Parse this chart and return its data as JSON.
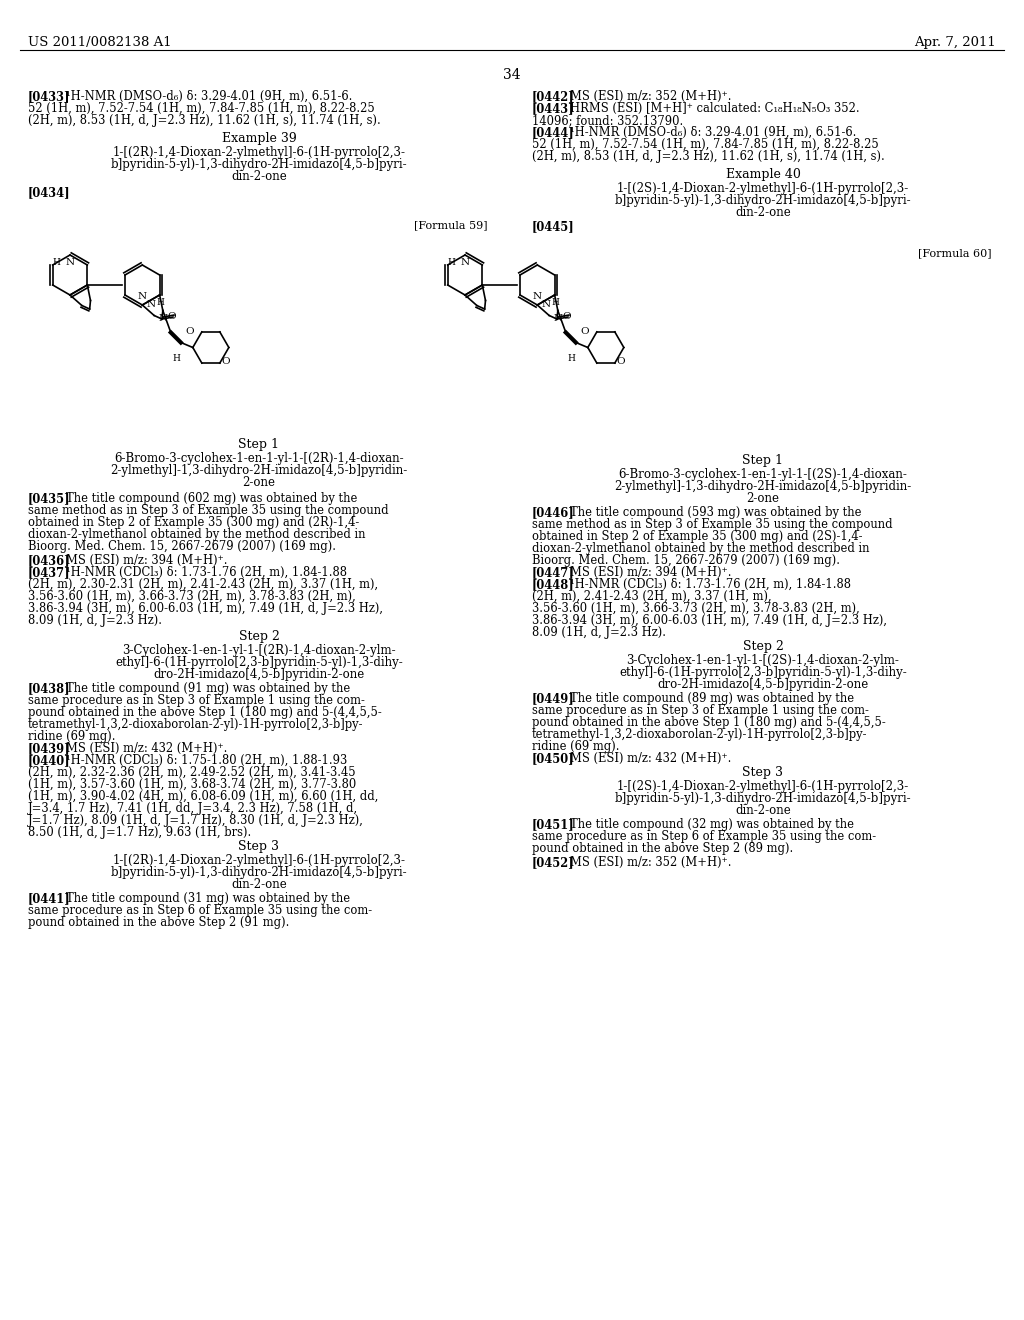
{
  "page_header_left": "US 2011/0082138 A1",
  "page_header_right": "Apr. 7, 2011",
  "page_number": "34",
  "bg_color": "#ffffff"
}
